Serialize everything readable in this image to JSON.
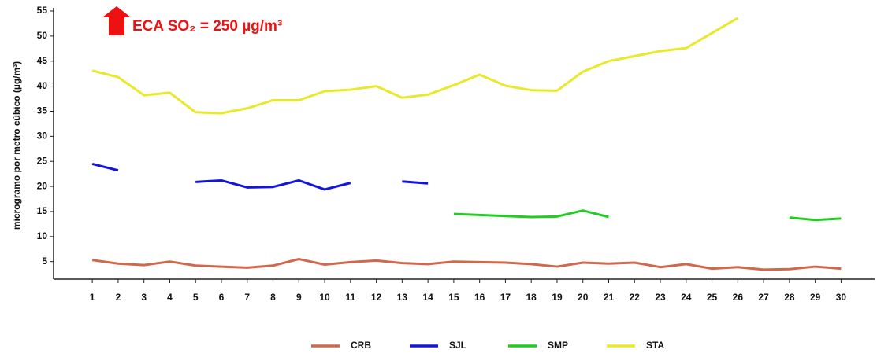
{
  "chart_data": {
    "type": "line",
    "annotation": "ECA SO₂ = 250 µg/m³",
    "y_label": "microgramo por metro cúbico (µg/m³)",
    "x": [
      1,
      2,
      3,
      4,
      5,
      6,
      7,
      8,
      9,
      10,
      11,
      12,
      13,
      14,
      15,
      16,
      17,
      18,
      19,
      20,
      21,
      22,
      23,
      24,
      25,
      26,
      27,
      28,
      29,
      30
    ],
    "xlim": [
      -0.5,
      31.3
    ],
    "xticks": [
      1,
      2,
      3,
      4,
      5,
      6,
      7,
      8,
      9,
      10,
      11,
      12,
      13,
      14,
      15,
      16,
      17,
      18,
      19,
      20,
      21,
      22,
      23,
      24,
      25,
      26,
      27,
      28,
      29,
      30
    ],
    "ylim": [
      1.5,
      55
    ],
    "yticks": [
      5,
      10,
      15,
      20,
      25,
      30,
      35,
      40,
      45,
      50,
      55
    ],
    "series": [
      {
        "name": "CRB",
        "color": "#d0684e",
        "values": [
          5.3,
          4.6,
          4.3,
          5.0,
          4.2,
          4.0,
          3.8,
          4.2,
          5.5,
          4.4,
          4.9,
          5.2,
          4.7,
          4.5,
          5.0,
          4.9,
          4.8,
          4.5,
          4.0,
          4.8,
          4.6,
          4.8,
          3.9,
          4.5,
          3.6,
          3.9,
          3.4,
          3.5,
          4.0,
          3.6
        ]
      },
      {
        "name": "SJL",
        "color": "#1414e0",
        "values": [
          24.5,
          23.2,
          null,
          null,
          20.9,
          21.2,
          19.8,
          19.9,
          21.2,
          19.4,
          20.7,
          null,
          21.0,
          20.6,
          null,
          null,
          null,
          null,
          null,
          null,
          null,
          null,
          null,
          null,
          null,
          null,
          null,
          null,
          null,
          null
        ]
      },
      {
        "name": "SMP",
        "color": "#22cc22",
        "values": [
          null,
          null,
          null,
          null,
          null,
          null,
          null,
          null,
          null,
          null,
          null,
          null,
          null,
          null,
          14.5,
          14.3,
          14.1,
          13.9,
          14.0,
          15.2,
          13.9,
          null,
          null,
          null,
          null,
          null,
          null,
          13.8,
          13.3,
          13.6
        ]
      },
      {
        "name": "STA",
        "color": "#e8e82c",
        "values": [
          43.1,
          41.8,
          38.2,
          38.7,
          34.8,
          34.6,
          35.6,
          37.2,
          37.2,
          39.0,
          39.3,
          40.0,
          37.7,
          38.3,
          40.2,
          42.3,
          40.1,
          39.2,
          39.1,
          42.9,
          45.0,
          46.0,
          47.0,
          47.6,
          50.6,
          53.6,
          null,
          null,
          null,
          null
        ]
      }
    ]
  }
}
